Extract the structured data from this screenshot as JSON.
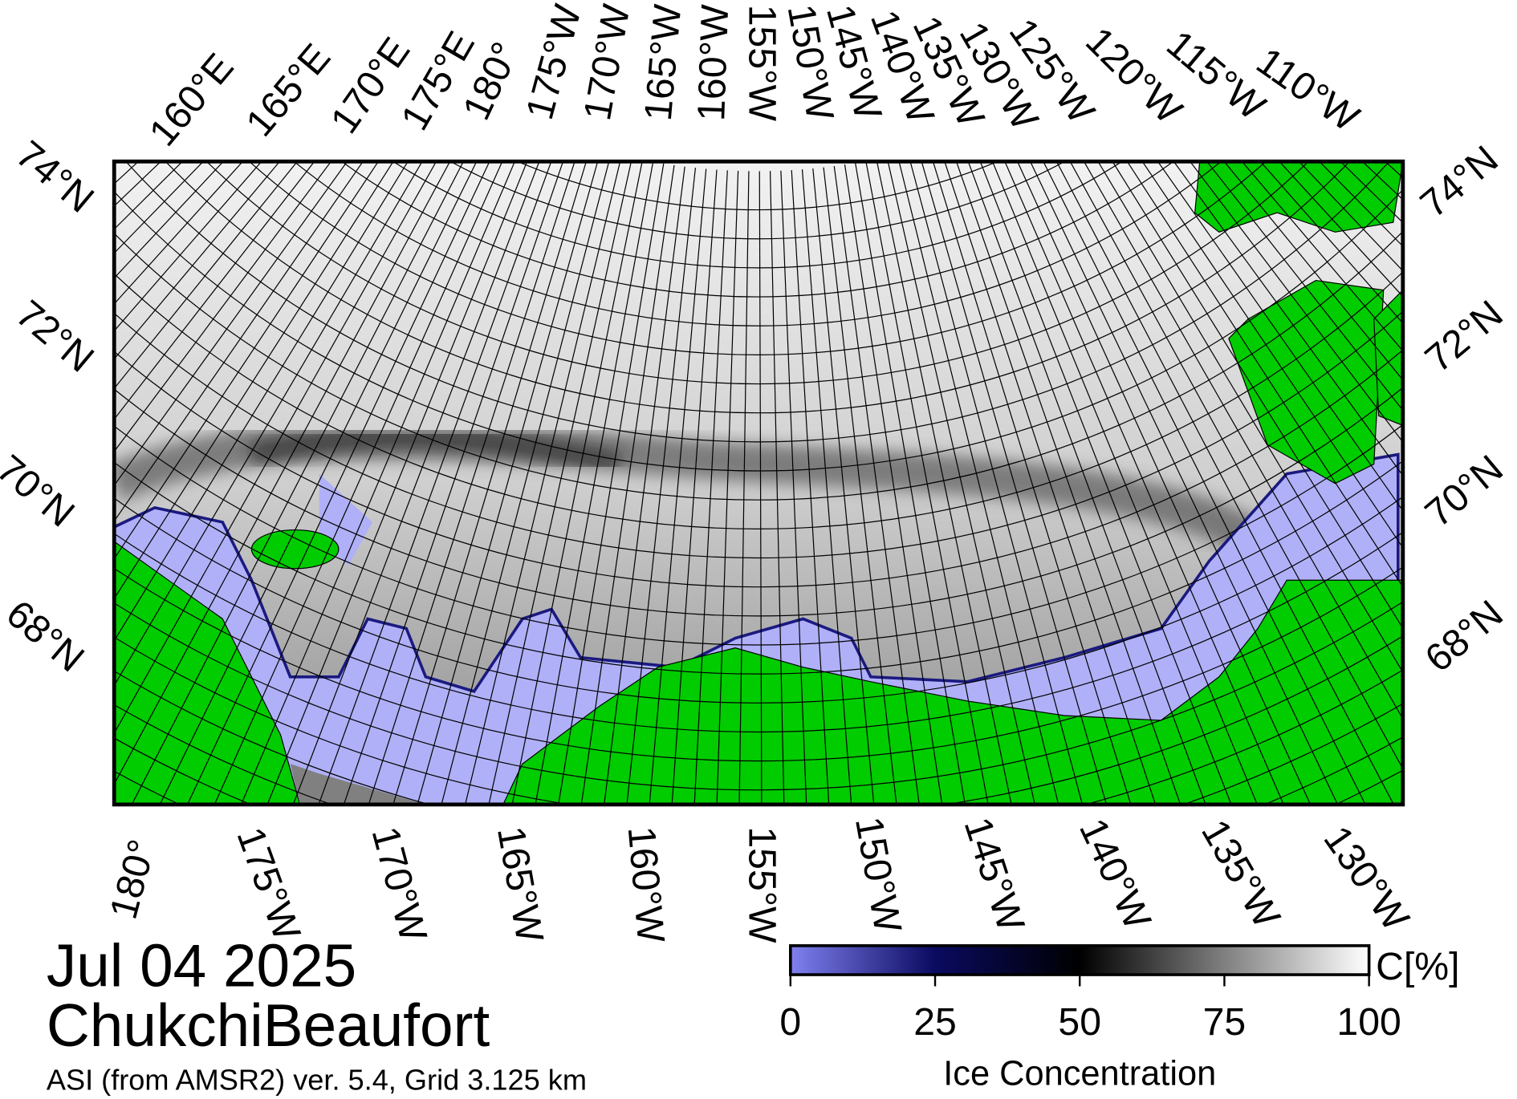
{
  "header": {
    "date": "Jul 04 2025",
    "region": "ChukchiBeaufort",
    "source": "ASI (from AMSR2) ver. 5.4,  Grid 3.125 km"
  },
  "map": {
    "top_longitudes": [
      "160°E",
      "165°E",
      "170°E",
      "175°E",
      "180°",
      "175°W",
      "170°W",
      "165°W",
      "160°W",
      "155°W",
      "150°W",
      "145°W",
      "140°W",
      "135°W",
      "130°W",
      "125°W",
      "120°W",
      "115°W",
      "110°W"
    ],
    "bottom_longitudes": [
      "180°",
      "175°W",
      "170°W",
      "165°W",
      "160°W",
      "155°W",
      "150°W",
      "145°W",
      "140°W",
      "135°W",
      "130°W"
    ],
    "left_latitudes": [
      "74°N",
      "72°N",
      "70°N",
      "68°N"
    ],
    "right_latitudes": [
      "74°N",
      "72°N",
      "70°N",
      "68°N"
    ]
  },
  "colorbar": {
    "label": "Ice Concentration",
    "unit": "C[%]",
    "range": [
      0,
      100
    ],
    "ticks": [
      0,
      25,
      50,
      75,
      100
    ]
  }
}
